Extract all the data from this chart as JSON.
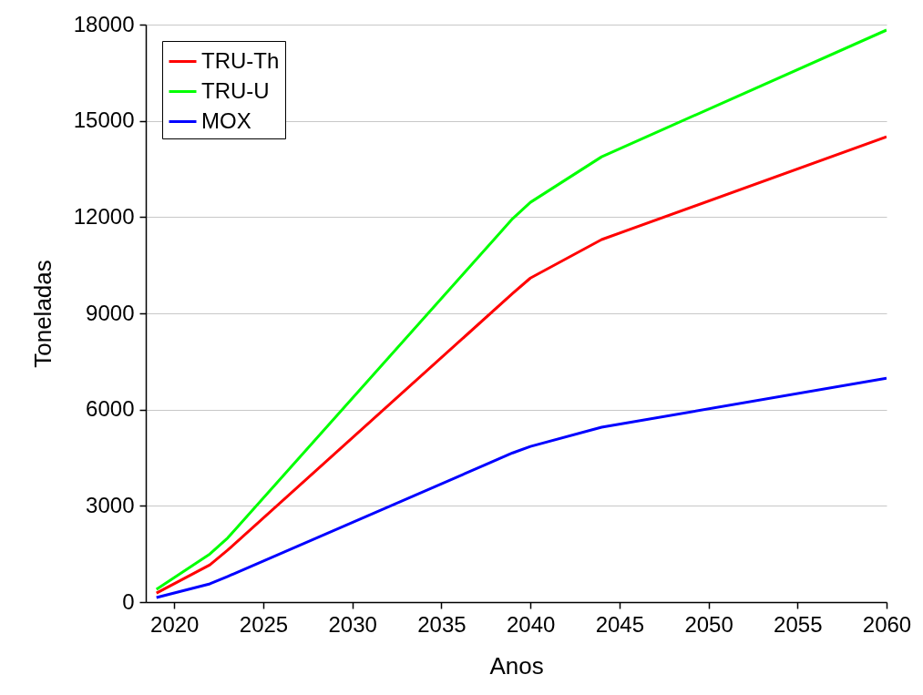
{
  "chart_data": {
    "type": "line",
    "xlabel": "Anos",
    "ylabel": "Toneladas",
    "x": [
      2019,
      2022,
      2023,
      2039,
      2040,
      2044,
      2060
    ],
    "series": [
      {
        "name": "TRU-Th",
        "color": "#ff0000",
        "values": [
          280,
          1160,
          1620,
          9620,
          10100,
          11300,
          14500
        ]
      },
      {
        "name": "TRU-U",
        "color": "#00ff00",
        "values": [
          400,
          1500,
          2000,
          11950,
          12460,
          13880,
          17830
        ]
      },
      {
        "name": "MOX",
        "color": "#0000ff",
        "values": [
          140,
          570,
          800,
          4650,
          4850,
          5450,
          6980
        ]
      }
    ],
    "xlim": [
      2018.4,
      2060
    ],
    "xticks": [
      2020,
      2025,
      2030,
      2035,
      2040,
      2045,
      2050,
      2055,
      2060
    ],
    "ylim": [
      0,
      18000
    ],
    "yticks": [
      0,
      3000,
      6000,
      9000,
      12000,
      15000,
      18000
    ],
    "grid": "y",
    "legend": "top left",
    "marker": "none",
    "line_style": "solid"
  }
}
